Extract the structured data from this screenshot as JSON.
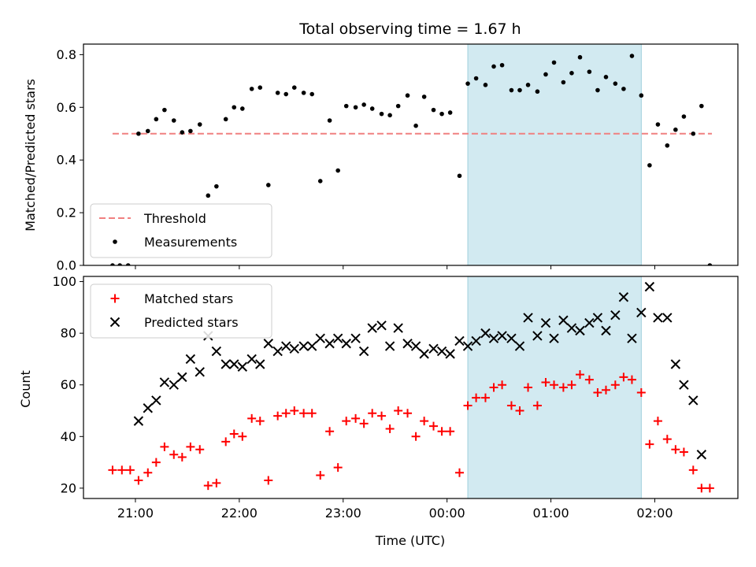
{
  "chart_data": [
    {
      "type": "scatter",
      "title": "Total observing time = 1.67 h",
      "xlabel": "",
      "ylabel": "Matched/Predicted stars",
      "ylim": [
        0,
        0.84
      ],
      "yticks": [
        0.0,
        0.2,
        0.4,
        0.6,
        0.8
      ],
      "ytick_labels": [
        "0.0",
        "0.2",
        "0.4",
        "0.6",
        "0.8"
      ],
      "x_range_hours": [
        20.5,
        26.8
      ],
      "shaded_interval_hours": [
        24.2,
        25.87
      ],
      "shade_color": "#add8e6",
      "legend_position": "lower left",
      "threshold": {
        "name": "Threshold",
        "value": 0.5,
        "x_start": 20.78,
        "x_end": 26.55,
        "color": "#f08080",
        "style": "dashed"
      },
      "series": [
        {
          "name": "Measurements",
          "color": "#000000",
          "marker": "dot",
          "points": [
            [
              20.78,
              0.0
            ],
            [
              20.85,
              0.0
            ],
            [
              20.93,
              0.0
            ],
            [
              21.03,
              0.5
            ],
            [
              21.12,
              0.51
            ],
            [
              21.2,
              0.555
            ],
            [
              21.28,
              0.59
            ],
            [
              21.37,
              0.55
            ],
            [
              21.45,
              0.505
            ],
            [
              21.53,
              0.51
            ],
            [
              21.62,
              0.535
            ],
            [
              21.7,
              0.265
            ],
            [
              21.78,
              0.3
            ],
            [
              21.87,
              0.555
            ],
            [
              21.95,
              0.6
            ],
            [
              22.03,
              0.595
            ],
            [
              22.12,
              0.67
            ],
            [
              22.2,
              0.675
            ],
            [
              22.28,
              0.305
            ],
            [
              22.37,
              0.655
            ],
            [
              22.45,
              0.65
            ],
            [
              22.53,
              0.675
            ],
            [
              22.62,
              0.655
            ],
            [
              22.7,
              0.65
            ],
            [
              22.78,
              0.32
            ],
            [
              22.87,
              0.55
            ],
            [
              22.95,
              0.36
            ],
            [
              23.03,
              0.605
            ],
            [
              23.12,
              0.6
            ],
            [
              23.2,
              0.61
            ],
            [
              23.28,
              0.595
            ],
            [
              23.37,
              0.575
            ],
            [
              23.45,
              0.57
            ],
            [
              23.53,
              0.605
            ],
            [
              23.62,
              0.645
            ],
            [
              23.7,
              0.53
            ],
            [
              23.78,
              0.64
            ],
            [
              23.87,
              0.59
            ],
            [
              23.95,
              0.575
            ],
            [
              24.03,
              0.58
            ],
            [
              24.12,
              0.34
            ],
            [
              24.2,
              0.69
            ],
            [
              24.28,
              0.71
            ],
            [
              24.37,
              0.685
            ],
            [
              24.45,
              0.755
            ],
            [
              24.53,
              0.76
            ],
            [
              24.62,
              0.665
            ],
            [
              24.7,
              0.665
            ],
            [
              24.78,
              0.685
            ],
            [
              24.87,
              0.66
            ],
            [
              24.95,
              0.725
            ],
            [
              25.03,
              0.77
            ],
            [
              25.12,
              0.695
            ],
            [
              25.2,
              0.73
            ],
            [
              25.28,
              0.79
            ],
            [
              25.37,
              0.735
            ],
            [
              25.45,
              0.665
            ],
            [
              25.53,
              0.715
            ],
            [
              25.62,
              0.69
            ],
            [
              25.7,
              0.67
            ],
            [
              25.78,
              0.795
            ],
            [
              25.87,
              0.645
            ],
            [
              25.95,
              0.38
            ],
            [
              26.03,
              0.535
            ],
            [
              26.12,
              0.455
            ],
            [
              26.2,
              0.515
            ],
            [
              26.28,
              0.565
            ],
            [
              26.37,
              0.5
            ],
            [
              26.45,
              0.605
            ],
            [
              26.53,
              0.0
            ]
          ]
        }
      ]
    },
    {
      "type": "scatter",
      "title": "",
      "xlabel": "Time (UTC)",
      "ylabel": "Count",
      "ylim": [
        16,
        102
      ],
      "yticks": [
        20,
        40,
        60,
        80,
        100
      ],
      "ytick_labels": [
        "20",
        "40",
        "60",
        "80",
        "100"
      ],
      "x_range_hours": [
        20.5,
        26.8
      ],
      "xticks_hours": [
        21,
        22,
        23,
        24,
        25,
        26
      ],
      "xtick_labels": [
        "21:00",
        "22:00",
        "23:00",
        "00:00",
        "01:00",
        "02:00"
      ],
      "shaded_interval_hours": [
        24.2,
        25.87
      ],
      "shade_color": "#add8e6",
      "legend_position": "upper left",
      "series": [
        {
          "name": "Matched stars",
          "color": "#ff0000",
          "marker": "plus",
          "points": [
            [
              20.78,
              27
            ],
            [
              20.87,
              27
            ],
            [
              20.95,
              27
            ],
            [
              21.03,
              23
            ],
            [
              21.12,
              26
            ],
            [
              21.2,
              30
            ],
            [
              21.28,
              36
            ],
            [
              21.37,
              33
            ],
            [
              21.45,
              32
            ],
            [
              21.53,
              36
            ],
            [
              21.62,
              35
            ],
            [
              21.7,
              21
            ],
            [
              21.78,
              22
            ],
            [
              21.87,
              38
            ],
            [
              21.95,
              41
            ],
            [
              22.03,
              40
            ],
            [
              22.12,
              47
            ],
            [
              22.2,
              46
            ],
            [
              22.28,
              23
            ],
            [
              22.37,
              48
            ],
            [
              22.45,
              49
            ],
            [
              22.53,
              50
            ],
            [
              22.62,
              49
            ],
            [
              22.7,
              49
            ],
            [
              22.78,
              25
            ],
            [
              22.87,
              42
            ],
            [
              22.95,
              28
            ],
            [
              23.03,
              46
            ],
            [
              23.12,
              47
            ],
            [
              23.2,
              45
            ],
            [
              23.28,
              49
            ],
            [
              23.37,
              48
            ],
            [
              23.45,
              43
            ],
            [
              23.53,
              50
            ],
            [
              23.62,
              49
            ],
            [
              23.7,
              40
            ],
            [
              23.78,
              46
            ],
            [
              23.87,
              44
            ],
            [
              23.95,
              42
            ],
            [
              24.03,
              42
            ],
            [
              24.12,
              26
            ],
            [
              24.2,
              52
            ],
            [
              24.28,
              55
            ],
            [
              24.37,
              55
            ],
            [
              24.45,
              59
            ],
            [
              24.53,
              60
            ],
            [
              24.62,
              52
            ],
            [
              24.7,
              50
            ],
            [
              24.78,
              59
            ],
            [
              24.87,
              52
            ],
            [
              24.95,
              61
            ],
            [
              25.03,
              60
            ],
            [
              25.12,
              59
            ],
            [
              25.2,
              60
            ],
            [
              25.28,
              64
            ],
            [
              25.37,
              62
            ],
            [
              25.45,
              57
            ],
            [
              25.53,
              58
            ],
            [
              25.62,
              60
            ],
            [
              25.7,
              63
            ],
            [
              25.78,
              62
            ],
            [
              25.87,
              57
            ],
            [
              25.95,
              37
            ],
            [
              26.03,
              46
            ],
            [
              26.12,
              39
            ],
            [
              26.2,
              35
            ],
            [
              26.28,
              34
            ],
            [
              26.37,
              27
            ],
            [
              26.45,
              20
            ],
            [
              26.53,
              20
            ]
          ]
        },
        {
          "name": "Predicted stars",
          "color": "#000000",
          "marker": "x",
          "points": [
            [
              21.03,
              46
            ],
            [
              21.12,
              51
            ],
            [
              21.2,
              54
            ],
            [
              21.28,
              61
            ],
            [
              21.37,
              60
            ],
            [
              21.45,
              63
            ],
            [
              21.53,
              70
            ],
            [
              21.62,
              65
            ],
            [
              21.7,
              79
            ],
            [
              21.78,
              73
            ],
            [
              21.87,
              68
            ],
            [
              21.95,
              68
            ],
            [
              22.03,
              67
            ],
            [
              22.12,
              70
            ],
            [
              22.2,
              68
            ],
            [
              22.28,
              76
            ],
            [
              22.37,
              73
            ],
            [
              22.45,
              75
            ],
            [
              22.53,
              74
            ],
            [
              22.62,
              75
            ],
            [
              22.7,
              75
            ],
            [
              22.78,
              78
            ],
            [
              22.87,
              76
            ],
            [
              22.95,
              78
            ],
            [
              23.03,
              76
            ],
            [
              23.12,
              78
            ],
            [
              23.2,
              73
            ],
            [
              23.28,
              82
            ],
            [
              23.37,
              83
            ],
            [
              23.45,
              75
            ],
            [
              23.53,
              82
            ],
            [
              23.62,
              76
            ],
            [
              23.7,
              75
            ],
            [
              23.78,
              72
            ],
            [
              23.87,
              74
            ],
            [
              23.95,
              73
            ],
            [
              24.03,
              72
            ],
            [
              24.12,
              77
            ],
            [
              24.2,
              75
            ],
            [
              24.28,
              77
            ],
            [
              24.37,
              80
            ],
            [
              24.45,
              78
            ],
            [
              24.53,
              79
            ],
            [
              24.62,
              78
            ],
            [
              24.7,
              75
            ],
            [
              24.78,
              86
            ],
            [
              24.87,
              79
            ],
            [
              24.95,
              84
            ],
            [
              25.03,
              78
            ],
            [
              25.12,
              85
            ],
            [
              25.2,
              82
            ],
            [
              25.28,
              81
            ],
            [
              25.37,
              84
            ],
            [
              25.45,
              86
            ],
            [
              25.53,
              81
            ],
            [
              25.62,
              87
            ],
            [
              25.7,
              94
            ],
            [
              25.78,
              78
            ],
            [
              25.87,
              88
            ],
            [
              25.95,
              98
            ],
            [
              26.03,
              86
            ],
            [
              26.12,
              86
            ],
            [
              26.2,
              68
            ],
            [
              26.28,
              60
            ],
            [
              26.37,
              54
            ],
            [
              26.45,
              33
            ]
          ]
        }
      ]
    }
  ]
}
